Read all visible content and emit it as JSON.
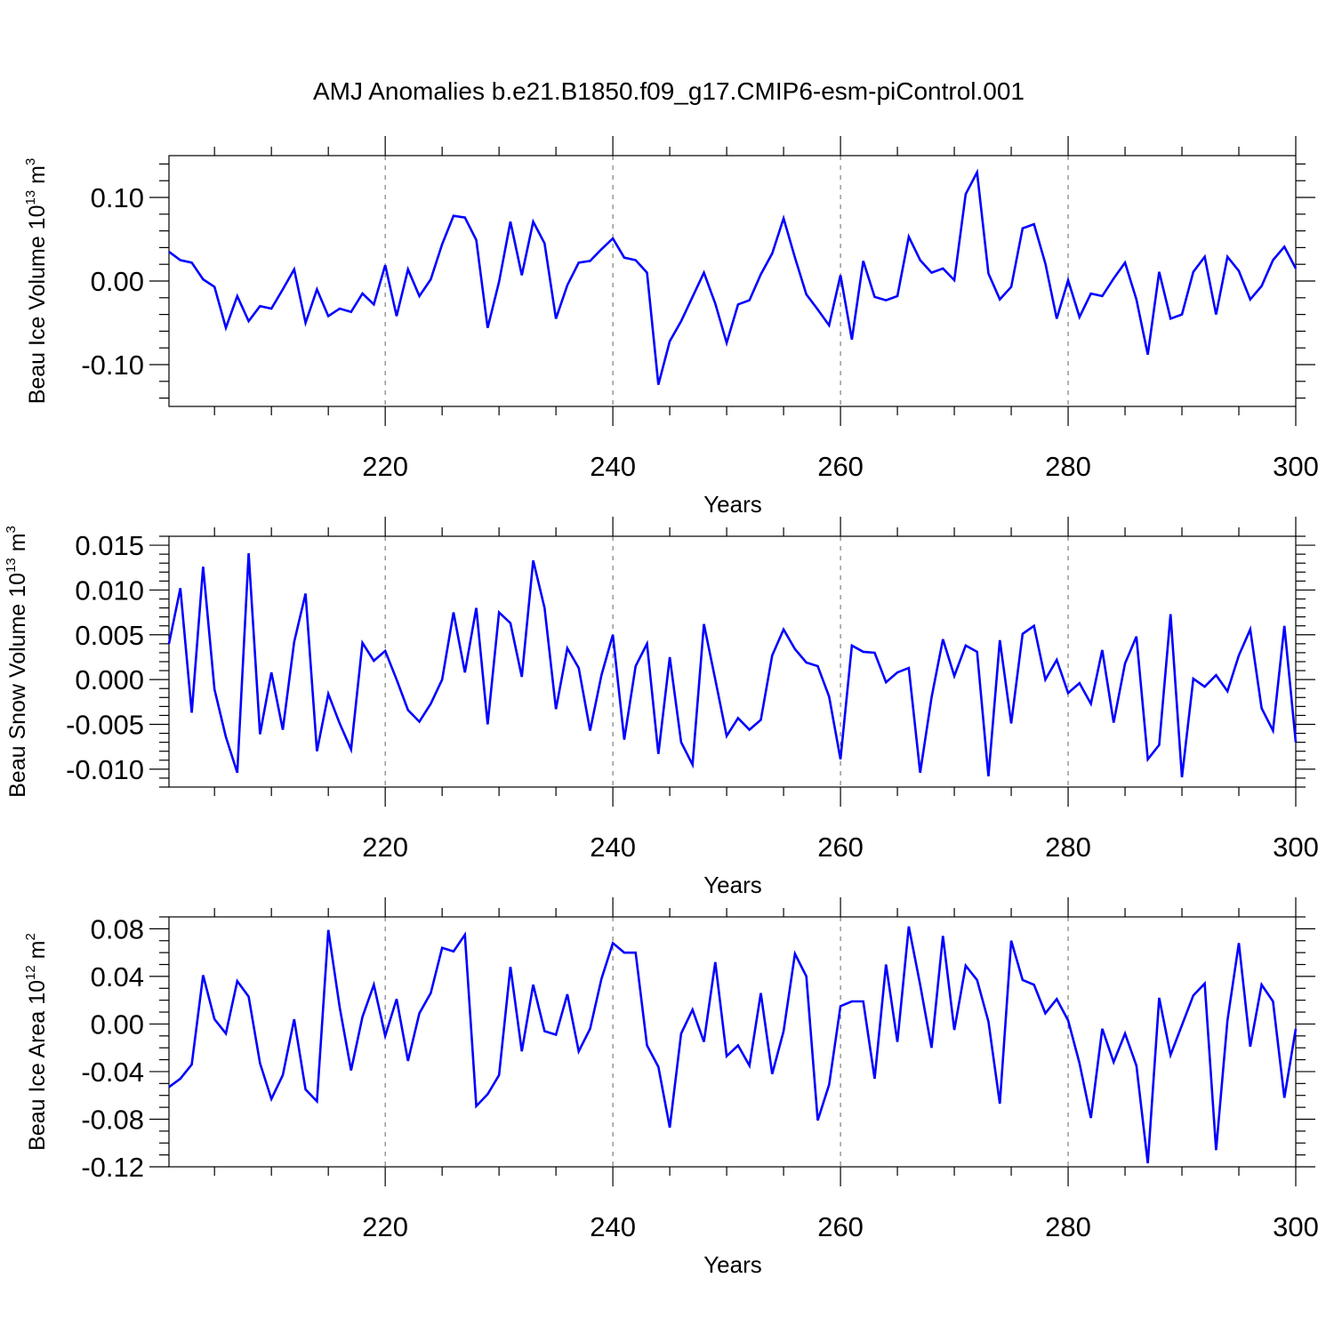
{
  "title": "AMJ Anomalies b.e21.B1850.f09_g17.CMIP6-esm-piControl.001",
  "colors": {
    "line": "#0000ff",
    "axis": "#000000",
    "grid": "#666666",
    "background": "#ffffff"
  },
  "chart_data": [
    {
      "type": "line",
      "ylabel_main": "Beau Ice Volume 10",
      "ylabel_exp": "13",
      "ylabel_unit": " m",
      "ylabel_unit_exp": "3",
      "xlabel": "Years",
      "xlim": [
        201,
        300
      ],
      "ylim": [
        -0.15,
        0.15
      ],
      "xticks": [
        220,
        240,
        260,
        280,
        300
      ],
      "xtick_labels": [
        "220",
        "240",
        "260",
        "280",
        "300"
      ],
      "yticks": [
        -0.1,
        0.0,
        0.1
      ],
      "ytick_labels": [
        "-0.10",
        "0.00",
        "0.10"
      ],
      "y_minor_step": 0.02,
      "x_minor_step": 5,
      "x_start": 201,
      "values": [
        0.035,
        0.025,
        0.022,
        0.002,
        -0.007,
        -0.056,
        -0.018,
        -0.048,
        -0.03,
        -0.033,
        -0.01,
        0.014,
        -0.05,
        -0.01,
        -0.042,
        -0.033,
        -0.037,
        -0.015,
        -0.028,
        0.019,
        -0.042,
        0.014,
        -0.018,
        0.002,
        0.044,
        0.078,
        0.076,
        0.049,
        -0.056,
        -0.001,
        0.071,
        0.007,
        0.071,
        0.045,
        -0.045,
        -0.005,
        0.022,
        0.024,
        0.038,
        0.051,
        0.028,
        0.025,
        0.01,
        -0.124,
        -0.072,
        -0.048,
        -0.019,
        0.01,
        -0.027,
        -0.074,
        -0.028,
        -0.023,
        0.008,
        0.033,
        0.075,
        0.028,
        -0.016,
        -0.034,
        -0.053,
        0.007,
        -0.07,
        0.024,
        -0.019,
        -0.023,
        -0.018,
        0.053,
        0.025,
        0.01,
        0.015,
        0.001,
        0.104,
        0.13,
        0.009,
        -0.022,
        -0.007,
        0.063,
        0.068,
        0.021,
        -0.045,
        0.001,
        -0.043,
        -0.015,
        -0.018,
        0.003,
        0.022,
        -0.022,
        -0.088,
        0.011,
        -0.045,
        -0.04,
        0.011,
        0.029,
        -0.04,
        0.029,
        0.012,
        -0.022,
        -0.006,
        0.025,
        0.041,
        0.015
      ]
    },
    {
      "type": "line",
      "ylabel_main": "Beau Snow Volume 10",
      "ylabel_exp": "13",
      "ylabel_unit": " m",
      "ylabel_unit_exp": "3",
      "xlabel": "Years",
      "xlim": [
        201,
        300
      ],
      "ylim": [
        -0.012,
        0.016
      ],
      "xticks": [
        220,
        240,
        260,
        280,
        300
      ],
      "xtick_labels": [
        "220",
        "240",
        "260",
        "280",
        "300"
      ],
      "yticks": [
        -0.01,
        -0.005,
        0.0,
        0.005,
        0.01,
        0.015
      ],
      "ytick_labels": [
        "-0.010",
        "-0.005",
        "0.000",
        "0.005",
        "0.010",
        "0.015"
      ],
      "y_minor_step": 0.001,
      "x_minor_step": 5,
      "x_start": 201,
      "values": [
        0.004,
        0.0102,
        -0.0037,
        0.0126,
        -0.0011,
        -0.0064,
        -0.0104,
        0.0141,
        -0.0061,
        0.0008,
        -0.0056,
        0.0042,
        0.0096,
        -0.008,
        -0.0016,
        -0.0049,
        -0.0078,
        0.0041,
        0.0021,
        0.0032,
        0.0,
        -0.0034,
        -0.0047,
        -0.0027,
        0.0,
        0.0075,
        0.0008,
        0.008,
        -0.005,
        0.0075,
        0.0063,
        0.0003,
        0.0133,
        0.008,
        -0.0033,
        0.0035,
        0.0013,
        -0.0057,
        0.0005,
        0.005,
        -0.0067,
        0.0015,
        0.004,
        -0.0083,
        0.0025,
        -0.007,
        -0.0095,
        0.0062,
        0.0,
        -0.0063,
        -0.0043,
        -0.0056,
        -0.0045,
        0.0027,
        0.0056,
        0.0034,
        0.0019,
        0.0015,
        -0.0019,
        -0.0089,
        0.0038,
        0.0031,
        0.003,
        -0.0003,
        0.0008,
        0.0013,
        -0.0104,
        -0.002,
        0.0045,
        0.0004,
        0.0038,
        0.0031,
        -0.0108,
        0.0044,
        -0.0049,
        0.0051,
        0.006,
        0.0,
        0.0022,
        -0.0015,
        -0.0004,
        -0.0027,
        0.0033,
        -0.0048,
        0.0018,
        0.0048,
        -0.0089,
        -0.0073,
        0.0073,
        -0.0109,
        0.0001,
        -0.0008,
        0.0005,
        -0.0013,
        0.0027,
        0.0056,
        -0.0032,
        -0.0057,
        0.006,
        -0.007
      ]
    },
    {
      "type": "line",
      "ylabel_main": "Beau Ice Area 10",
      "ylabel_exp": "12",
      "ylabel_unit": " m",
      "ylabel_unit_exp": "2",
      "xlabel": "Years",
      "xlim": [
        201,
        300
      ],
      "ylim": [
        -0.12,
        0.09
      ],
      "xticks": [
        220,
        240,
        260,
        280,
        300
      ],
      "xtick_labels": [
        "220",
        "240",
        "260",
        "280",
        "300"
      ],
      "yticks": [
        -0.12,
        -0.08,
        -0.04,
        0.0,
        0.04,
        0.08
      ],
      "ytick_labels": [
        "-0.12",
        "-0.08",
        "-0.04",
        "0.00",
        "0.04",
        "0.08"
      ],
      "y_minor_step": 0.01,
      "x_minor_step": 5,
      "x_start": 201,
      "values": [
        -0.053,
        -0.046,
        -0.034,
        0.041,
        0.004,
        -0.008,
        0.036,
        0.023,
        -0.033,
        -0.063,
        -0.043,
        0.004,
        -0.055,
        -0.065,
        0.079,
        0.014,
        -0.039,
        0.006,
        0.033,
        -0.01,
        0.021,
        -0.031,
        0.009,
        0.026,
        0.064,
        0.061,
        0.075,
        -0.069,
        -0.059,
        -0.043,
        0.048,
        -0.023,
        0.033,
        -0.006,
        -0.009,
        0.025,
        -0.023,
        -0.004,
        0.038,
        0.068,
        0.06,
        0.06,
        -0.018,
        -0.036,
        -0.087,
        -0.008,
        0.012,
        -0.015,
        0.052,
        -0.027,
        -0.018,
        -0.035,
        0.026,
        -0.042,
        -0.006,
        0.059,
        0.04,
        -0.081,
        -0.051,
        0.015,
        0.019,
        0.019,
        -0.046,
        0.05,
        -0.015,
        0.082,
        0.033,
        -0.02,
        0.074,
        -0.005,
        0.049,
        0.037,
        0.002,
        -0.067,
        0.07,
        0.037,
        0.033,
        0.009,
        0.021,
        0.003,
        -0.033,
        -0.079,
        -0.004,
        -0.032,
        -0.008,
        -0.035,
        -0.117,
        0.022,
        -0.026,
        -0.001,
        0.024,
        0.034,
        -0.106,
        0.003,
        0.068,
        -0.019,
        0.033,
        0.019,
        -0.062,
        -0.004
      ]
    }
  ]
}
